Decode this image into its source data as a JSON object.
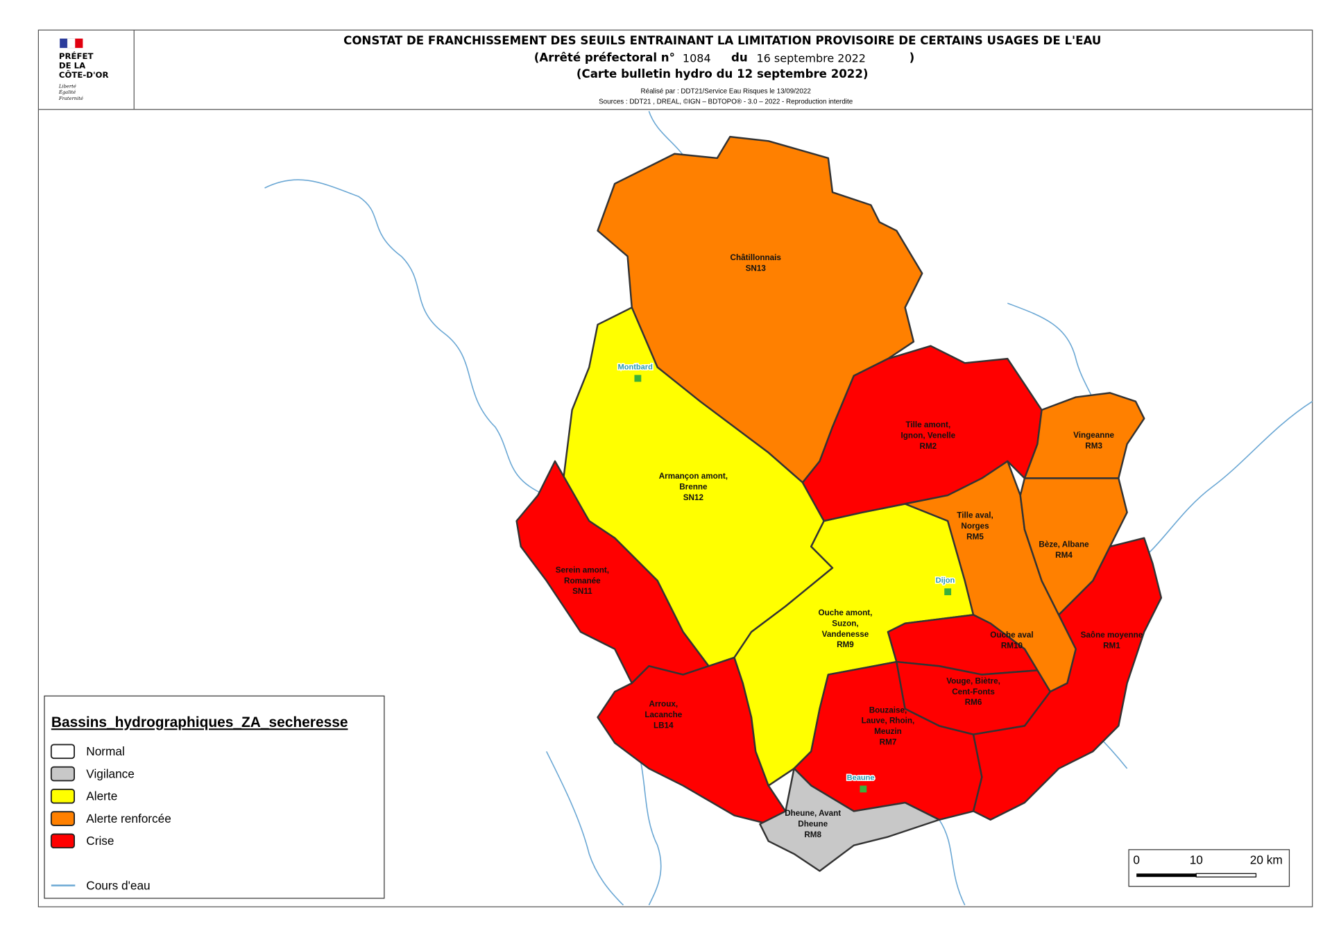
{
  "header": {
    "logo": [
      "PRÉFET",
      "DE LA",
      "CÔTE-D'OR"
    ],
    "motto": [
      "Liberté",
      "Égalité",
      "Fraternité"
    ],
    "title": "CONSTAT DE FRANCHISSEMENT DES SEUILS ENTRAINANT LA LIMITATION PROVISOIRE DE CERTAINS USAGES DE L'EAU",
    "arrete": "(Arrêté préfectoral n°",
    "number": "1084",
    "du": "du",
    "date": "16 septembre 2022",
    "close": ")",
    "bulletin": "(Carte bulletin hydro du 12 septembre 2022)",
    "realise": "Réalisé par : DDT21/Service Eau Risques le 13/09/2022",
    "sources": "Sources : DDT21 , DREAL, ©IGN – BDTOPO® - 3.0 – 2022 - Reproduction interdite"
  },
  "legend": {
    "title": "Bassins_hydrographiques_ZA_secheresse",
    "items": [
      {
        "label": "Normal",
        "color": "#ffffff"
      },
      {
        "label": "Vigilance",
        "color": "#c8c8c8"
      },
      {
        "label": "Alerte",
        "color": "#ffff00"
      },
      {
        "label": "Alerte renforcée",
        "color": "#ff8000"
      },
      {
        "label": "Crise",
        "color": "#ff0000"
      }
    ],
    "river": "Cours d'eau",
    "river_color": "#6aa7d4"
  },
  "basins": [
    {
      "label": [
        "Châtillonnais",
        "SN13"
      ],
      "color": "#ff8000"
    },
    {
      "label": [
        "Armançon amont,",
        "Brenne",
        "SN12"
      ],
      "color": "#ffff00"
    },
    {
      "label": [
        "Serein amont,",
        "Romanée",
        "SN11"
      ],
      "color": "#ff0000"
    },
    {
      "label": [
        "Arroux,",
        "Lacanche",
        "LB14"
      ],
      "color": "#ff0000"
    },
    {
      "label": [
        "Ouche amont,",
        "Suzon,",
        "Vandenesse",
        "RM9"
      ],
      "color": "#ffff00"
    },
    {
      "label": [
        "Bouzaise,",
        "Lauve, Rhoin,",
        "Meuzin",
        "RM7"
      ],
      "color": "#ff0000"
    },
    {
      "label": [
        "Dheune, Avant",
        "Dheune",
        "RM8"
      ],
      "color": "#c8c8c8"
    },
    {
      "label": [
        "Tille amont,",
        "Ignon, Venelle",
        "RM2"
      ],
      "color": "#ff0000"
    },
    {
      "label": [
        "Tille aval,",
        "Norges",
        "RM5"
      ],
      "color": "#ff8000"
    },
    {
      "label": [
        "Vingeanne",
        "RM3"
      ],
      "color": "#ff8000"
    },
    {
      "label": [
        "Bèze, Albane",
        "RM4"
      ],
      "color": "#ff8000"
    },
    {
      "label": [
        "Saône moyenne",
        "RM1"
      ],
      "color": "#ff0000"
    },
    {
      "label": [
        "Ouche aval",
        "RM10"
      ],
      "color": "#ff0000"
    },
    {
      "label": [
        "Vouge, Biètre,",
        "Cent-Fonts",
        "RM6"
      ],
      "color": "#ff0000"
    }
  ],
  "towns": [
    "Montbard",
    "Dijon",
    "Beaune"
  ],
  "scale": [
    "0",
    "10",
    "20 km"
  ]
}
